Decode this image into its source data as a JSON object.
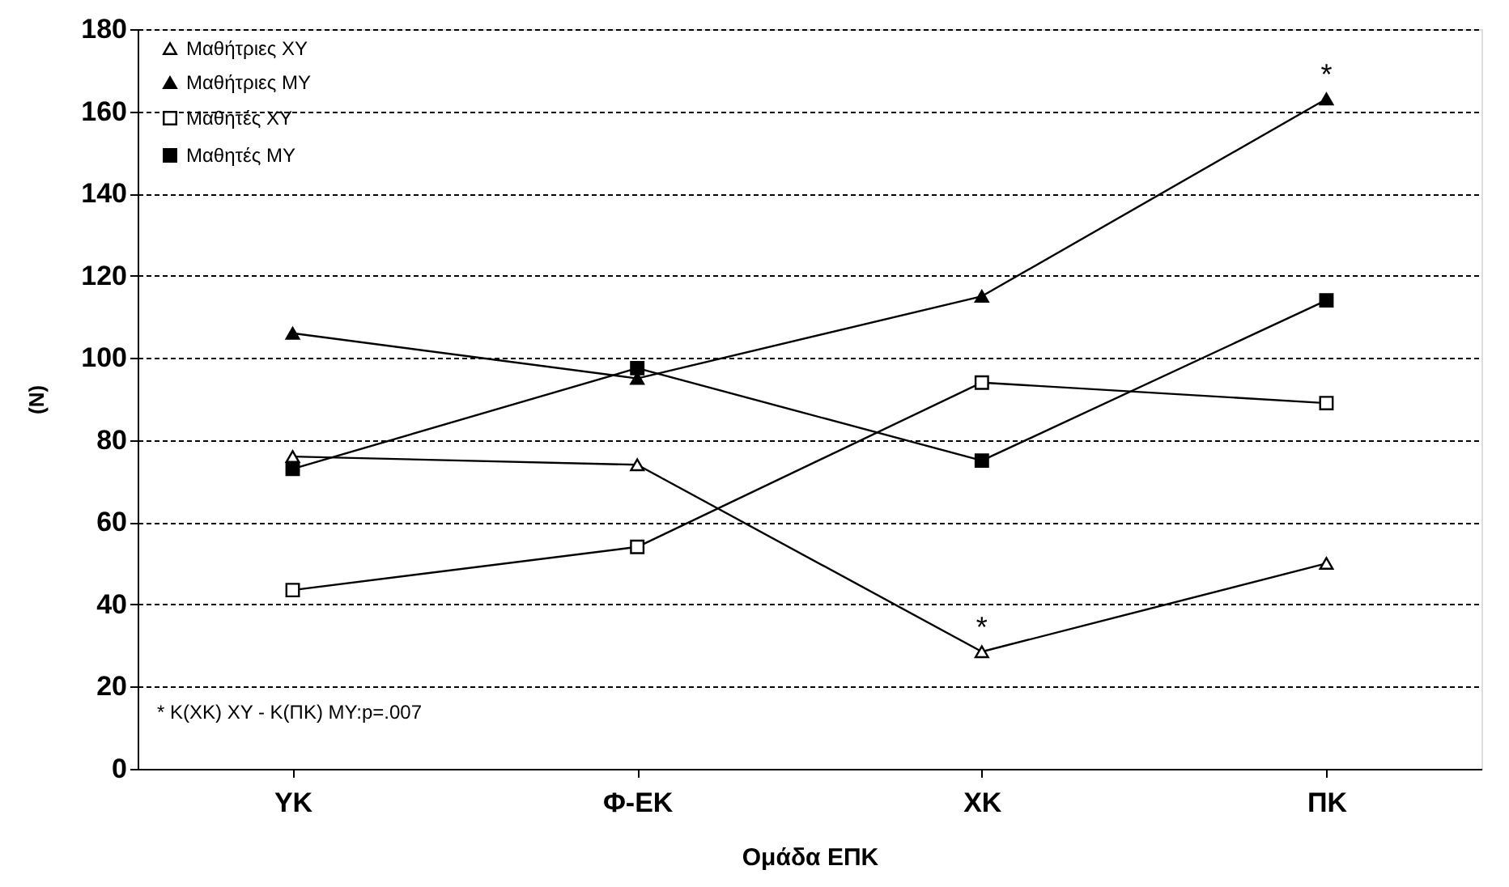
{
  "chart_data": {
    "type": "line",
    "xlabel": "Ομάδα ΕΠΚ",
    "ylabel": "(N)",
    "categories": [
      "ΥΚ",
      "Φ-ΕΚ",
      "ΧΚ",
      "ΠΚ"
    ],
    "series": [
      {
        "name": "Μαθήτριες ΧΥ",
        "color": "#000000",
        "marker": "triangle",
        "values": [
          76,
          74,
          28.5,
          50
        ]
      },
      {
        "name": "Μαθήτριες ΜΥ",
        "color": "#000000",
        "marker": "triangle",
        "values": [
          106,
          95,
          115,
          163
        ]
      },
      {
        "name": "Μαθητές ΧΥ",
        "color": "#000000",
        "marker": "square",
        "values": [
          43.5,
          54,
          94,
          89
        ]
      },
      {
        "name": "Μαθητές ΜΥ",
        "color": "#000000",
        "marker": "square",
        "values": [
          73,
          97.5,
          75,
          114
        ]
      }
    ],
    "ylim": [
      0,
      180
    ],
    "yticks": [
      0,
      20,
      40,
      60,
      80,
      100,
      120,
      140,
      160,
      180
    ],
    "grid": "y",
    "legend": "top left",
    "line_style": "solid",
    "annotations": [
      {
        "text": "*",
        "x": "ΧΚ",
        "y": 28.5
      },
      {
        "text": "*",
        "x": "ΠΚ",
        "y": 163
      },
      "* Κ(ΧΚ) ΧΥ - Κ(ΠΚ) ΜΥ:p=.007"
    ]
  }
}
